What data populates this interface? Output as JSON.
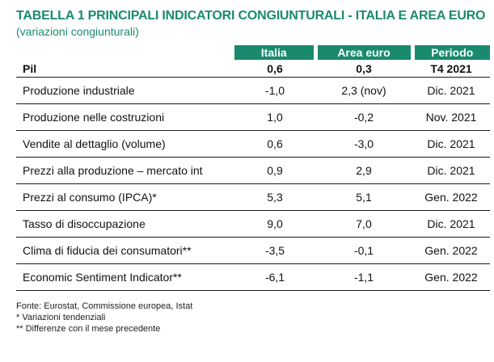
{
  "title": "TABELLA 1  PRINCIPALI INDICATORI CONGIUNTURALI - ITALIA E AREA EURO",
  "subtitle": "(variazioni congiunturali)",
  "headers": [
    "",
    "Italia",
    "Area euro",
    "Periodo"
  ],
  "rows": [
    {
      "label": "Pil",
      "italia": "0,6",
      "area": "0,3",
      "periodo": "T4 2021"
    },
    {
      "label": "Produzione industriale",
      "italia": "-1,0",
      "area": "2,3 (nov)",
      "periodo": "Dic. 2021"
    },
    {
      "label": "Produzione nelle costruzioni",
      "italia": "1,0",
      "area": "-0,2",
      "periodo": "Nov. 2021"
    },
    {
      "label": "Vendite al dettaglio (volume)",
      "italia": "0,6",
      "area": "-3,0",
      "periodo": "Dic. 2021"
    },
    {
      "label": "Prezzi alla produzione – mercato int",
      "italia": "0,9",
      "area": "2,9",
      "periodo": "Dic. 2021"
    },
    {
      "label": "Prezzi al consumo (IPCA)*",
      "italia": "5,3",
      "area": "5,1",
      "periodo": "Gen. 2022"
    },
    {
      "label": "Tasso di disoccupazione",
      "italia": "9,0",
      "area": "7,0",
      "periodo": "Dic. 2021"
    },
    {
      "label": "Clima di fiducia dei consumatori**",
      "italia": "-3,5",
      "area": "-0,1",
      "periodo": "Gen. 2022"
    },
    {
      "label": "Economic Sentiment Indicator**",
      "italia": "-6,1",
      "area": "-1,1",
      "periodo": "Gen. 2022"
    }
  ],
  "notes": [
    "Fonte: Eurostat, Commissione europea, Istat",
    "* Variazioni tendenziali",
    "** Differenze con il mese precedente"
  ],
  "colors": {
    "accent": "#1a8a6f",
    "rule": "#1a1a1a"
  }
}
